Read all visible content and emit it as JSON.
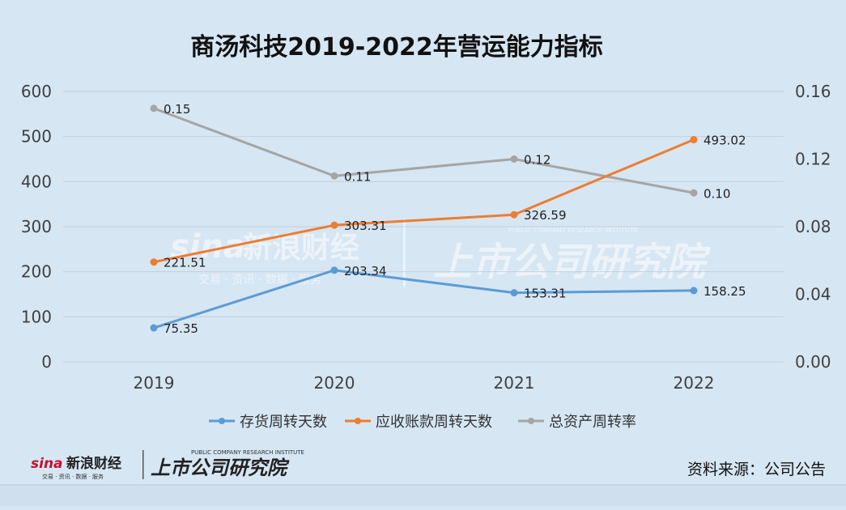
{
  "chart_data": {
    "type": "line",
    "title": "商汤科技2019-2022年营运能力指标",
    "categories": [
      "2019",
      "2020",
      "2021",
      "2022"
    ],
    "y_left": {
      "min": 0,
      "max": 600,
      "ticks": [
        "0",
        "100",
        "200",
        "300",
        "400",
        "500",
        "600"
      ]
    },
    "y_right": {
      "min": 0,
      "max": 0.16,
      "ticks": [
        "0.00",
        "0.04",
        "0.08",
        "0.12",
        "0.16"
      ]
    },
    "grid": true,
    "legend_position": "bottom",
    "series": [
      {
        "name": "存货周转天数",
        "axis": "left",
        "color": "#5b9bd5",
        "values": [
          75.35,
          203.34,
          153.31,
          158.25
        ],
        "labels": [
          "75.35",
          "203.34",
          "153.31",
          "158.25"
        ]
      },
      {
        "name": "应收账款周转天数",
        "axis": "left",
        "color": "#ed7d31",
        "values": [
          221.51,
          303.31,
          326.59,
          493.02
        ],
        "labels": [
          "221.51",
          "303.31",
          "326.59",
          "493.02"
        ]
      },
      {
        "name": "总资产周转率",
        "axis": "right",
        "color": "#a5a5a5",
        "values": [
          0.15,
          0.11,
          0.12,
          0.1
        ],
        "labels": [
          "0.15",
          "0.11",
          "0.12",
          "0.10"
        ]
      }
    ]
  },
  "source": "资料来源：公司公告",
  "watermark": {
    "sina": "sina",
    "finance": "新浪财经",
    "sub": "交易 · 资讯 · 数据 · 服务",
    "institute_en": "PUBLIC COMPANY RESEARCH INSTITUTE",
    "institute_cn": "上市公司研究院"
  }
}
